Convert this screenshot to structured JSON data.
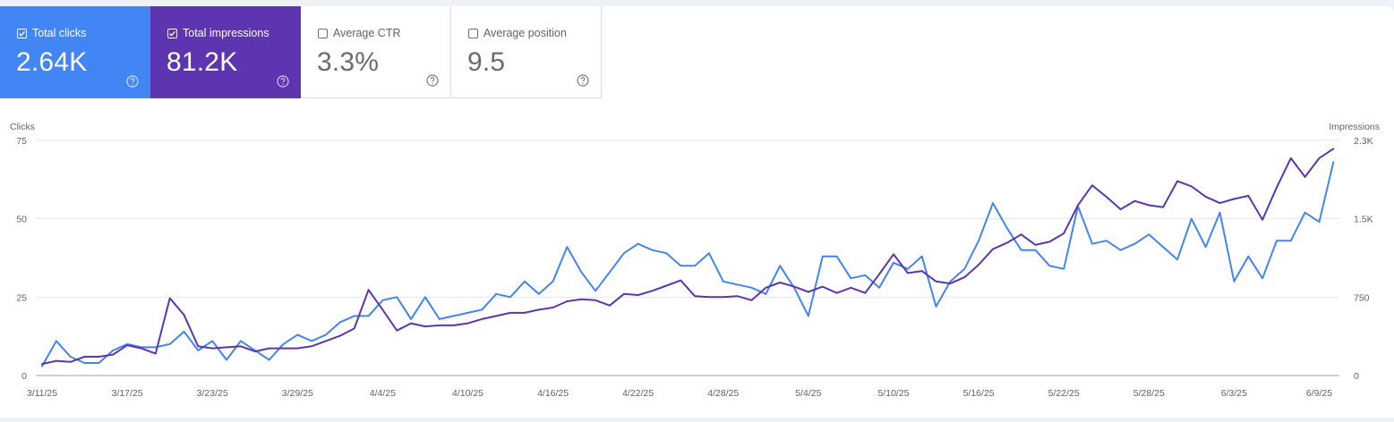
{
  "metrics": [
    {
      "label": "Total clicks",
      "value": "2.64K",
      "selected": true,
      "color": "#4285f4"
    },
    {
      "label": "Total impressions",
      "value": "81.2K",
      "selected": true,
      "color": "#5e35b1"
    },
    {
      "label": "Average CTR",
      "value": "3.3%",
      "selected": false,
      "color": "#ffffff"
    },
    {
      "label": "Average position",
      "value": "9.5",
      "selected": false,
      "color": "#ffffff"
    }
  ],
  "icons": {
    "checkbox": "checkbox-icon",
    "help": "help-circle-icon"
  },
  "chart_data": {
    "type": "line",
    "left_axis": {
      "label": "Clicks",
      "ticks": [
        0,
        25,
        50,
        75
      ],
      "tick_labels": [
        "0",
        "25",
        "50",
        "75"
      ],
      "ylim": [
        0,
        75
      ]
    },
    "right_axis": {
      "label": "Impressions",
      "ticks": [
        0,
        750,
        1500,
        2250
      ],
      "tick_labels": [
        "0",
        "750",
        "1.5K",
        "2.3K"
      ],
      "ylim": [
        0,
        2250
      ]
    },
    "x_tick_labels": [
      "3/11/25",
      "3/17/25",
      "3/23/25",
      "3/29/25",
      "4/4/25",
      "4/10/25",
      "4/16/25",
      "4/22/25",
      "4/28/25",
      "5/4/25",
      "5/10/25",
      "5/16/25",
      "5/22/25",
      "5/28/25",
      "6/3/25",
      "6/9/25"
    ],
    "x_start": "3/11/25",
    "x_end": "6/10/25",
    "grid": true,
    "series": [
      {
        "name": "Clicks",
        "axis": "left",
        "color": "#4285f4",
        "values": [
          3,
          11,
          6,
          4,
          4,
          8,
          10,
          9,
          9,
          10,
          14,
          8,
          11,
          5,
          11,
          8,
          5,
          10,
          13,
          11,
          13,
          17,
          19,
          19,
          24,
          25,
          18,
          25,
          18,
          19,
          20,
          21,
          26,
          25,
          30,
          26,
          30,
          41,
          33,
          27,
          33,
          39,
          42,
          40,
          39,
          35,
          35,
          39,
          30,
          29,
          28,
          26,
          35,
          28,
          19,
          38,
          38,
          31,
          32,
          28,
          36,
          34,
          38,
          22,
          30,
          34,
          43,
          55,
          47,
          40,
          40,
          35,
          34,
          54,
          42,
          43,
          40,
          42,
          45,
          41,
          37,
          50,
          41,
          52,
          30,
          38,
          31,
          43,
          43,
          52,
          49,
          68
        ]
      },
      {
        "name": "Impressions",
        "axis": "right",
        "color": "#5e35b1",
        "values": [
          110,
          140,
          130,
          180,
          180,
          200,
          290,
          260,
          210,
          740,
          580,
          280,
          260,
          270,
          280,
          230,
          260,
          260,
          260,
          280,
          330,
          380,
          450,
          820,
          630,
          430,
          500,
          470,
          480,
          480,
          500,
          540,
          570,
          600,
          600,
          630,
          650,
          710,
          730,
          720,
          670,
          780,
          770,
          810,
          860,
          910,
          760,
          750,
          750,
          760,
          720,
          840,
          890,
          850,
          800,
          850,
          790,
          840,
          790,
          970,
          1160,
          980,
          1000,
          900,
          880,
          940,
          1060,
          1210,
          1270,
          1350,
          1250,
          1280,
          1360,
          1630,
          1820,
          1710,
          1590,
          1670,
          1630,
          1610,
          1860,
          1810,
          1710,
          1650,
          1690,
          1720,
          1490,
          1800,
          2080,
          1900,
          2080,
          2170
        ]
      }
    ]
  }
}
